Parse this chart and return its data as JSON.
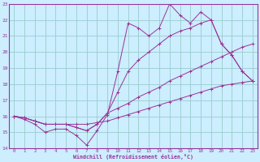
{
  "xlabel": "Windchill (Refroidissement éolien,°C)",
  "xlim": [
    -0.5,
    23.5
  ],
  "ylim": [
    14,
    23
  ],
  "xticks": [
    0,
    1,
    2,
    3,
    4,
    5,
    6,
    7,
    8,
    9,
    10,
    11,
    12,
    13,
    14,
    15,
    16,
    17,
    18,
    19,
    20,
    21,
    22,
    23
  ],
  "yticks": [
    14,
    15,
    16,
    17,
    18,
    19,
    20,
    21,
    22,
    23
  ],
  "bg_color": "#cceeff",
  "line_color": "#993399",
  "grid_color": "#99cccc",
  "lines": [
    {
      "x": [
        0,
        1,
        2,
        3,
        4,
        5,
        6,
        7,
        8,
        9,
        10,
        11,
        12,
        13,
        14,
        15,
        16,
        17,
        18,
        19,
        20,
        21,
        22,
        23
      ],
      "y": [
        16.0,
        15.9,
        15.7,
        15.5,
        15.5,
        15.5,
        15.5,
        15.5,
        15.6,
        15.7,
        15.9,
        16.1,
        16.3,
        16.5,
        16.7,
        16.9,
        17.1,
        17.3,
        17.5,
        17.7,
        17.9,
        18.0,
        18.1,
        18.2
      ]
    },
    {
      "x": [
        0,
        1,
        2,
        3,
        4,
        5,
        6,
        7,
        8,
        9,
        10,
        11,
        12,
        13,
        14,
        15,
        16,
        17,
        18,
        19,
        20,
        21,
        22,
        23
      ],
      "y": [
        16.0,
        15.9,
        15.7,
        15.5,
        15.5,
        15.5,
        15.3,
        15.1,
        15.5,
        16.2,
        16.5,
        16.8,
        17.2,
        17.5,
        17.8,
        18.2,
        18.5,
        18.8,
        19.1,
        19.4,
        19.7,
        20.0,
        20.3,
        20.5
      ]
    },
    {
      "x": [
        0,
        1,
        2,
        3,
        4,
        5,
        6,
        7,
        8,
        9,
        10,
        11,
        12,
        13,
        14,
        15,
        16,
        17,
        18,
        19,
        20,
        21,
        22,
        23
      ],
      "y": [
        16.0,
        15.8,
        15.5,
        15.0,
        15.2,
        15.2,
        14.8,
        14.2,
        15.1,
        16.1,
        18.8,
        21.8,
        21.5,
        21.0,
        21.5,
        23.0,
        22.3,
        21.8,
        22.5,
        22.0,
        20.5,
        19.8,
        18.8,
        18.2
      ]
    },
    {
      "x": [
        0,
        1,
        2,
        3,
        4,
        5,
        6,
        7,
        8,
        9,
        10,
        11,
        12,
        13,
        14,
        15,
        16,
        17,
        18,
        19,
        20,
        21,
        22,
        23
      ],
      "y": [
        16.0,
        15.9,
        15.7,
        15.5,
        15.5,
        15.5,
        15.3,
        15.1,
        15.5,
        16.2,
        17.5,
        18.8,
        19.5,
        20.0,
        20.5,
        21.0,
        21.3,
        21.5,
        21.8,
        22.0,
        20.5,
        19.8,
        18.8,
        18.2
      ]
    }
  ]
}
